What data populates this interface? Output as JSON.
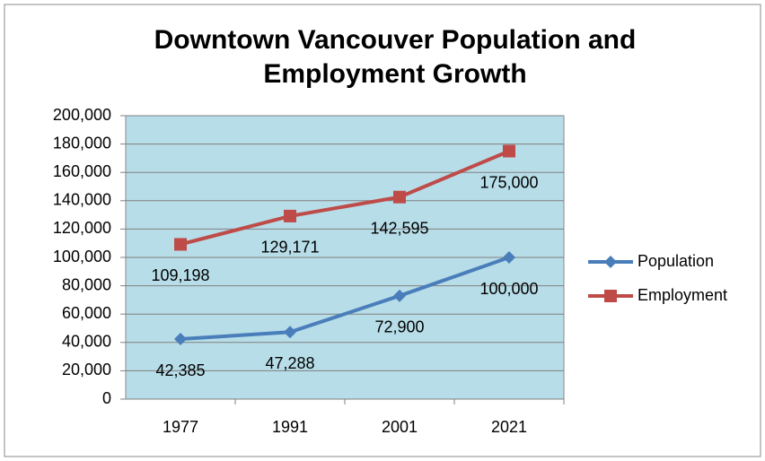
{
  "chart_data": {
    "type": "line",
    "title": "Downtown Vancouver Population and Employment Growth",
    "categories": [
      "1977",
      "1991",
      "2001",
      "2021"
    ],
    "series": [
      {
        "name": "Population",
        "color": "#4a7ebb",
        "marker": "diamond",
        "values": [
          42385,
          47288,
          72900,
          100000
        ],
        "value_labels": [
          "42,385",
          "47,288",
          "72,900",
          "100,000"
        ]
      },
      {
        "name": "Employment",
        "color": "#be4b48",
        "marker": "square",
        "values": [
          109198,
          129171,
          142595,
          175000
        ],
        "value_labels": [
          "109,198",
          "129,171",
          "142,595",
          "175,000"
        ]
      }
    ],
    "ylim": [
      0,
      200000
    ],
    "yticks": [
      0,
      {
        "value": 20000,
        "label": "20,000"
      },
      {
        "value": 40000,
        "label": "40,000"
      },
      {
        "value": 60000,
        "label": "60,000"
      },
      {
        "value": 80000,
        "label": "80,000"
      },
      {
        "value": 100000,
        "label": "100,000"
      },
      {
        "value": 120000,
        "label": "120,000"
      },
      {
        "value": 140000,
        "label": "140,000"
      },
      {
        "value": 160000,
        "label": "160,000"
      },
      {
        "value": 180000,
        "label": "180,000"
      },
      {
        "value": 200000,
        "label": "200,000"
      }
    ],
    "grid": true,
    "legend": "right",
    "plot_background": "#b7dde8"
  }
}
